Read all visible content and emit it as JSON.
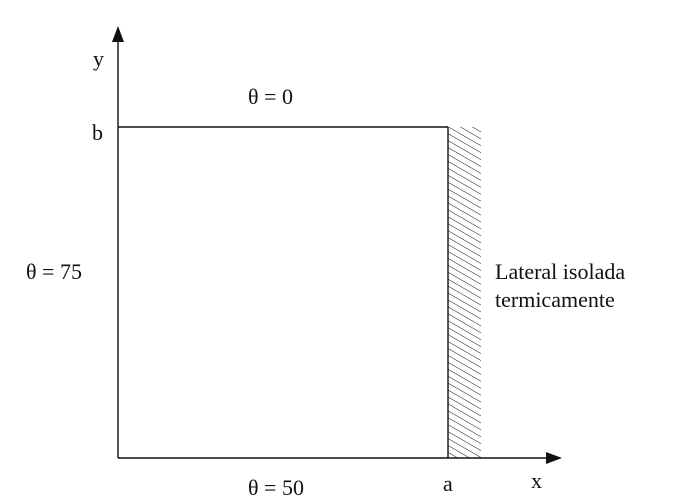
{
  "diagram": {
    "axes": {
      "x_label": "x",
      "y_label": "y",
      "x_tick": "a",
      "y_tick": "b"
    },
    "boundaries": {
      "top": "θ = 0",
      "left": "θ = 75",
      "bottom": "θ = 50"
    },
    "insulated_side": {
      "line1": "Lateral isolada",
      "line2": "termicamente"
    },
    "colors": {
      "stroke": "#111111",
      "background": "#ffffff"
    }
  }
}
